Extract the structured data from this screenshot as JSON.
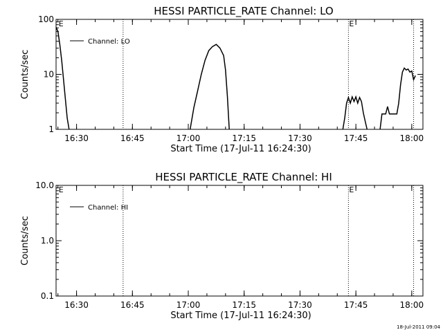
{
  "footer_timestamp": "18-Jul-2011 09:04",
  "chart_data": [
    {
      "type": "line",
      "title": "HESSI PARTICLE_RATE Channel: LO",
      "xlabel": "Start Time (17-Jul-11 16:24:30)",
      "ylabel": "Counts/sec",
      "yscale": "log",
      "ylim": [
        1,
        100
      ],
      "xlim": [
        "16:24:30",
        "18:03:00"
      ],
      "x_ticks": [
        "16:30",
        "16:45",
        "17:00",
        "17:15",
        "17:30",
        "17:45",
        "18:00"
      ],
      "y_ticks": [
        "1",
        "10",
        "100"
      ],
      "legend": {
        "entries": [
          "Channel: LO"
        ],
        "placement": "top-left"
      },
      "grid": false,
      "markers": [
        {
          "x": "16:25:00",
          "label": "E",
          "line": false
        },
        {
          "x": "16:42:30",
          "label": "",
          "line": true
        },
        {
          "x": "17:43:00",
          "label": "E",
          "line": true
        },
        {
          "x": "18:00:30",
          "label": "",
          "line": true
        }
      ],
      "series": [
        {
          "name": "Channel: LO",
          "segments": [
            {
              "x": [
                "16:24:30",
                "16:25:00",
                "16:25:30",
                "16:26:00",
                "16:26:30",
                "16:27:00",
                "16:27:30",
                "16:28:00"
              ],
              "y": [
                72,
                60,
                35,
                18,
                8,
                3.5,
                1.6,
                1.0
              ]
            },
            {
              "x": [
                "17:00:30",
                "17:01:30",
                "17:02:30",
                "17:03:30",
                "17:04:30",
                "17:05:30",
                "17:06:30",
                "17:07:30",
                "17:08:30",
                "17:09:30",
                "17:10:00",
                "17:10:30",
                "17:11:00"
              ],
              "y": [
                1.0,
                2.5,
                5,
                10,
                18,
                27,
                32,
                35,
                30,
                22,
                12,
                4,
                1.0
              ]
            },
            {
              "x": [
                "17:41:30",
                "17:42:00",
                "17:42:30",
                "17:43:00",
                "17:43:30",
                "17:44:00",
                "17:44:30",
                "17:45:00",
                "17:45:30",
                "17:46:00",
                "17:46:30",
                "17:47:00",
                "17:47:30",
                "17:48:00"
              ],
              "y": [
                1.0,
                1.6,
                3.0,
                3.8,
                3.0,
                3.9,
                3.2,
                3.9,
                3.0,
                3.8,
                3.2,
                2.0,
                1.4,
                1.0
              ]
            },
            {
              "x": [
                "17:51:30",
                "17:52:00",
                "17:53:00",
                "17:53:30",
                "17:54:00",
                "17:54:30",
                "17:56:00",
                "17:56:30",
                "17:57:00",
                "17:57:30",
                "17:58:00",
                "17:58:30",
                "17:59:00",
                "17:59:30",
                "18:00:00",
                "18:00:30",
                "18:01:00"
              ],
              "y": [
                1.0,
                1.9,
                1.9,
                2.6,
                1.9,
                1.9,
                1.9,
                3.0,
                6.5,
                11,
                13,
                12,
                12.5,
                11,
                11.5,
                8,
                9.5
              ]
            }
          ]
        }
      ]
    },
    {
      "type": "line",
      "title": "HESSI PARTICLE_RATE Channel: HI",
      "xlabel": "Start Time (17-Jul-11 16:24:30)",
      "ylabel": "Counts/sec",
      "yscale": "log",
      "ylim": [
        0.1,
        10.0
      ],
      "xlim": [
        "16:24:30",
        "18:03:00"
      ],
      "x_ticks": [
        "16:30",
        "16:45",
        "17:00",
        "17:15",
        "17:30",
        "17:45",
        "18:00"
      ],
      "y_ticks": [
        "0.1",
        "1.0",
        "10.0"
      ],
      "legend": {
        "entries": [
          "Channel: HI"
        ],
        "placement": "top-left"
      },
      "grid": false,
      "markers": [
        {
          "x": "16:25:00",
          "label": "E",
          "line": false
        },
        {
          "x": "16:42:30",
          "label": "",
          "line": true
        },
        {
          "x": "17:43:00",
          "label": "E",
          "line": true
        },
        {
          "x": "18:00:30",
          "label": "",
          "line": true
        }
      ],
      "series": [
        {
          "name": "Channel: HI",
          "segments": []
        }
      ]
    }
  ]
}
